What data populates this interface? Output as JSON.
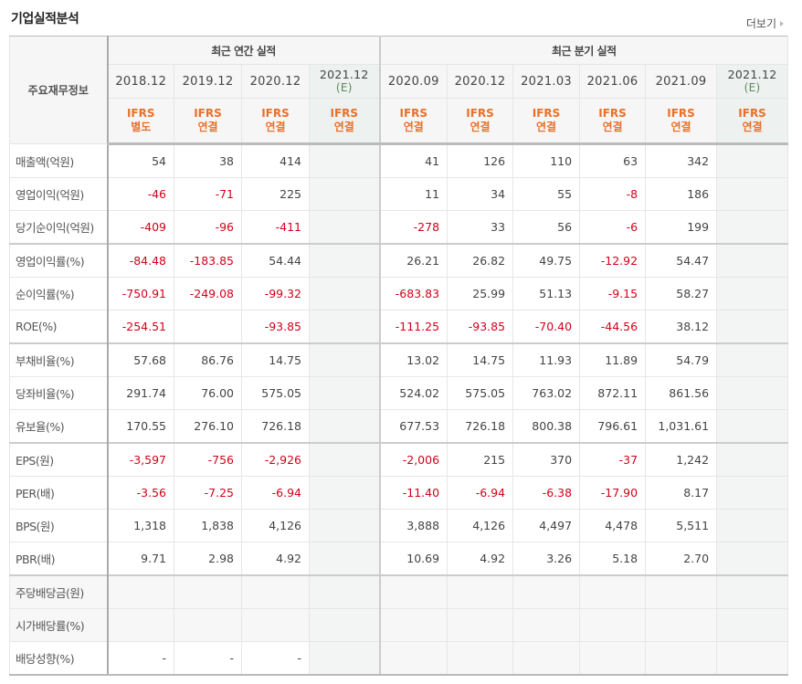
{
  "header": {
    "title": "기업실적분석",
    "more_label": "더보기"
  },
  "table": {
    "label_header": "주요재무정보",
    "groups": {
      "annual": "최근 연간 실적",
      "quarterly": "최근 분기 실적"
    },
    "columns": [
      {
        "date": "2018.12",
        "est": "",
        "ifrs1": "IFRS",
        "ifrs2": "별도"
      },
      {
        "date": "2019.12",
        "est": "",
        "ifrs1": "IFRS",
        "ifrs2": "연결"
      },
      {
        "date": "2020.12",
        "est": "",
        "ifrs1": "IFRS",
        "ifrs2": "연결"
      },
      {
        "date": "2021.12",
        "est": "(E)",
        "ifrs1": "IFRS",
        "ifrs2": "연결"
      },
      {
        "date": "2020.09",
        "est": "",
        "ifrs1": "IFRS",
        "ifrs2": "연결"
      },
      {
        "date": "2020.12",
        "est": "",
        "ifrs1": "IFRS",
        "ifrs2": "연결"
      },
      {
        "date": "2021.03",
        "est": "",
        "ifrs1": "IFRS",
        "ifrs2": "연결"
      },
      {
        "date": "2021.06",
        "est": "",
        "ifrs1": "IFRS",
        "ifrs2": "연결"
      },
      {
        "date": "2021.09",
        "est": "",
        "ifrs1": "IFRS",
        "ifrs2": "연결"
      },
      {
        "date": "2021.12",
        "est": "(E)",
        "ifrs1": "IFRS",
        "ifrs2": "연결"
      }
    ],
    "rows": [
      {
        "label": "매출액(억원)",
        "values": [
          "54",
          "38",
          "414",
          "",
          "41",
          "126",
          "110",
          "63",
          "342",
          ""
        ]
      },
      {
        "label": "영업이익(억원)",
        "values": [
          "-46",
          "-71",
          "225",
          "",
          "11",
          "34",
          "55",
          "-8",
          "186",
          ""
        ]
      },
      {
        "label": "당기순이익(억원)",
        "values": [
          "-409",
          "-96",
          "-411",
          "",
          "-278",
          "33",
          "56",
          "-6",
          "199",
          ""
        ]
      },
      {
        "label": "영업이익률(%)",
        "values": [
          "-84.48",
          "-183.85",
          "54.44",
          "",
          "26.21",
          "26.82",
          "49.75",
          "-12.92",
          "54.47",
          ""
        ]
      },
      {
        "label": "순이익률(%)",
        "values": [
          "-750.91",
          "-249.08",
          "-99.32",
          "",
          "-683.83",
          "25.99",
          "51.13",
          "-9.15",
          "58.27",
          ""
        ]
      },
      {
        "label": "ROE(%)",
        "values": [
          "-254.51",
          "",
          "-93.85",
          "",
          "-111.25",
          "-93.85",
          "-70.40",
          "-44.56",
          "38.12",
          ""
        ]
      },
      {
        "label": "부채비율(%)",
        "values": [
          "57.68",
          "86.76",
          "14.75",
          "",
          "13.02",
          "14.75",
          "11.93",
          "11.89",
          "54.79",
          ""
        ]
      },
      {
        "label": "당좌비율(%)",
        "values": [
          "291.74",
          "76.00",
          "575.05",
          "",
          "524.02",
          "575.05",
          "763.02",
          "872.11",
          "861.56",
          ""
        ]
      },
      {
        "label": "유보율(%)",
        "values": [
          "170.55",
          "276.10",
          "726.18",
          "",
          "677.53",
          "726.18",
          "800.38",
          "796.61",
          "1,031.61",
          ""
        ]
      },
      {
        "label": "EPS(원)",
        "values": [
          "-3,597",
          "-756",
          "-2,926",
          "",
          "-2,006",
          "215",
          "370",
          "-37",
          "1,242",
          ""
        ]
      },
      {
        "label": "PER(배)",
        "values": [
          "-3.56",
          "-7.25",
          "-6.94",
          "",
          "-11.40",
          "-6.94",
          "-6.38",
          "-17.90",
          "8.17",
          ""
        ]
      },
      {
        "label": "BPS(원)",
        "values": [
          "1,318",
          "1,838",
          "4,126",
          "",
          "3,888",
          "4,126",
          "4,497",
          "4,478",
          "5,511",
          ""
        ]
      },
      {
        "label": "PBR(배)",
        "values": [
          "9.71",
          "2.98",
          "4.92",
          "",
          "10.69",
          "4.92",
          "3.26",
          "5.18",
          "2.70",
          ""
        ]
      },
      {
        "label": "주당배당금(원)",
        "values": [
          "",
          "",
          "",
          "",
          "",
          "",
          "",
          "",
          "",
          ""
        ]
      },
      {
        "label": "시가배당률(%)",
        "values": [
          "",
          "",
          "",
          "",
          "",
          "",
          "",
          "",
          "",
          ""
        ]
      },
      {
        "label": "배당성향(%)",
        "values": [
          "-",
          "-",
          "-",
          "",
          "",
          "",
          "",
          "",
          "",
          ""
        ]
      }
    ]
  },
  "colors": {
    "negative": "#d0021b",
    "ifrs": "#e8702a",
    "estimate_bg": "#edf1ef"
  }
}
